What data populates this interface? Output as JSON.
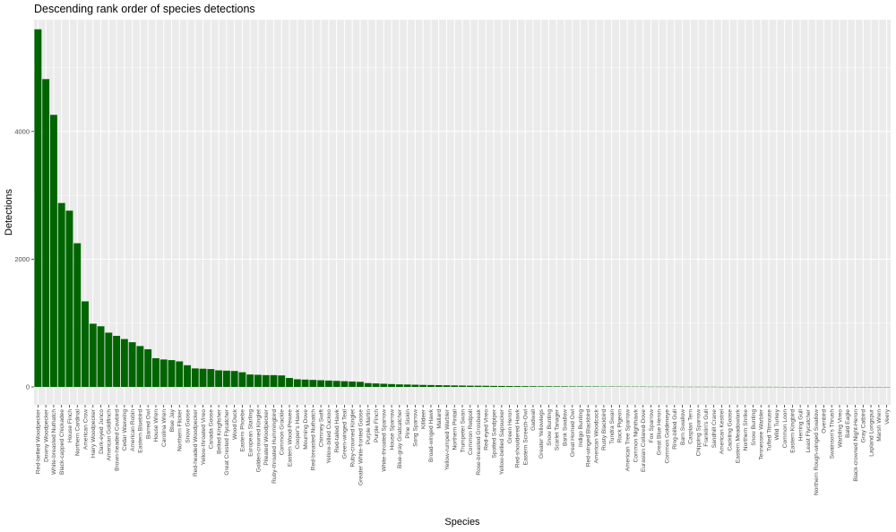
{
  "chart_data": {
    "type": "bar",
    "title": "Descending rank order of species detections",
    "xlabel": "Species",
    "ylabel": "Detections",
    "ylim": [
      -280,
      5750
    ],
    "yticks": [
      0,
      2000,
      4000
    ],
    "grid": true,
    "colors": {
      "bar": "#006400",
      "panel": "#ebebeb",
      "grid": "#ffffff",
      "tick_text": "#4d4d4d"
    },
    "categories": [
      "Red-bellied Woodpecker",
      "Downy Woodpecker",
      "White-breasted Nuthatch",
      "Black-capped Chickadee",
      "House Finch",
      "Northern Cardinal",
      "American Crow",
      "Hairy Woodpecker",
      "Dark-eyed Junco",
      "American Goldfinch",
      "Brown-headed Cowbird",
      "Cedar Waxwing",
      "American Robin",
      "Eastern Bluebird",
      "Barred Owl",
      "House Wren",
      "Carolina Wren",
      "Blue Jay",
      "Northern Flicker",
      "Snow Goose",
      "Red-headed Woodpecker",
      "Yellow-throated Vireo",
      "Canada Goose",
      "Belted Kingfisher",
      "Great Crested Flycatcher",
      "Wood Duck",
      "Eastern Phoebe",
      "European Starling",
      "Golden-crowned Kinglet",
      "Pileated Woodpecker",
      "Ruby-throated Hummingbird",
      "Common Grackle",
      "Eastern Wood-Pewee",
      "Cooper's Hawk",
      "Mourning Dove",
      "Red-breasted Nuthatch",
      "Chimney Swift",
      "Yellow-billed Cuckoo",
      "Red-tailed Hawk",
      "Green-winged Teal",
      "Ruby-crowned Kinglet",
      "Greater White-fronted Goose",
      "Purple Martin",
      "Purple Finch",
      "White-throated Sparrow",
      "House Sparrow",
      "Blue-gray Gnatcatcher",
      "Pine Siskin",
      "Song Sparrow",
      "Killdeer",
      "Broad-winged Hawk",
      "Mallard",
      "Yellow-rumped Warbler",
      "Northern Pintail",
      "Trumpeter Swan",
      "Common Redpoll",
      "Rose-breasted Grosbeak",
      "Red-eyed Vireo",
      "Spotted Sandpiper",
      "Yellow-bellied Sapsucker",
      "Green Heron",
      "Red-shouldered Hawk",
      "Eastern Screech-Owl",
      "Gadwall",
      "Greater Yellowlegs",
      "Snow Bunting",
      "Scarlet Tanager",
      "Bank Swallow",
      "Great Horned Owl",
      "Indigo Bunting",
      "Red-winged Blackbird",
      "American Woodcock",
      "Rusty Blackbird",
      "Tundra Swan",
      "Rock Pigeon",
      "American Tree Sparrow",
      "Common Nighthawk",
      "Eurasian Collared-Dove",
      "Fox Sparrow",
      "Great Blue Heron",
      "Common Goldeneye",
      "Ring-billed Gull",
      "Barn Swallow",
      "Caspian Tern",
      "Chipping Sparrow",
      "Franklin's Gull",
      "Sandhill Crane",
      "American Kestrel",
      "Cackling Goose",
      "Eastern Meadowlark",
      "Northern Shrike",
      "Snow Bunting",
      "Tennessee Warbler",
      "Tufted Titmouse",
      "Wild Turkey",
      "Common Loon",
      "Eastern Kingbird",
      "Herring Gull",
      "Least Flycatcher",
      "Northern Rough-winged Swallow",
      "Ovenbird",
      "Swainson's Thrush",
      "Warbling Vireo",
      "Bald Eagle",
      "Black-crowned Night-Heron",
      "Gray Catbird",
      "Lapland Longspur",
      "Marsh Wren",
      "Veery"
    ],
    "values": [
      5600,
      4820,
      4260,
      2880,
      2760,
      2250,
      1340,
      990,
      950,
      850,
      800,
      750,
      700,
      640,
      590,
      450,
      430,
      420,
      400,
      340,
      290,
      285,
      280,
      260,
      255,
      250,
      230,
      195,
      190,
      185,
      185,
      180,
      140,
      120,
      115,
      110,
      105,
      100,
      95,
      90,
      85,
      80,
      60,
      55,
      50,
      45,
      40,
      38,
      35,
      32,
      30,
      28,
      26,
      24,
      22,
      20,
      19,
      18,
      16,
      15,
      14,
      13,
      12,
      11,
      10,
      10,
      9,
      9,
      8,
      8,
      7,
      7,
      6,
      6,
      6,
      5,
      5,
      5,
      4,
      4,
      4,
      4,
      3,
      3,
      3,
      3,
      3,
      2,
      2,
      2,
      2,
      2,
      2,
      2,
      2,
      1,
      1,
      1,
      1,
      1,
      1,
      1,
      1,
      1,
      1,
      1,
      1,
      1,
      1
    ]
  }
}
